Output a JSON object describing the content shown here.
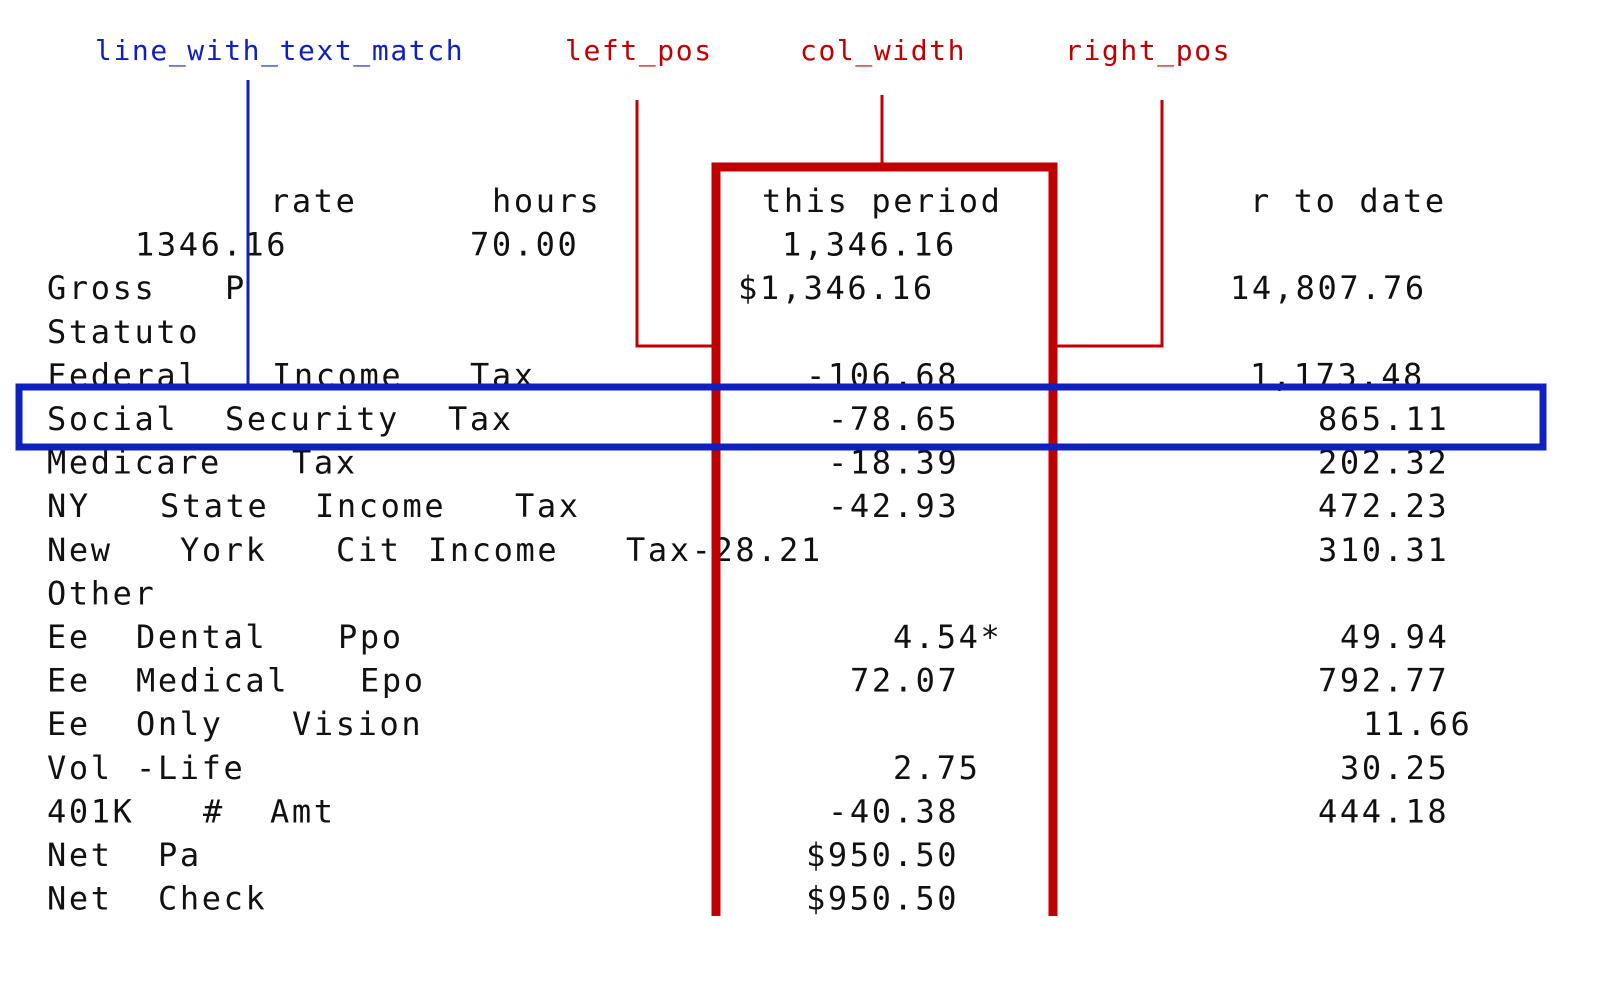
{
  "annotations": {
    "line_with_text_match": "line_with_text_match",
    "left_pos": "left_pos",
    "col_width": "col_width",
    "right_pos": "right_pos"
  },
  "rows": [
    [
      "rate",
      "hours",
      "this period",
      "r to date"
    ],
    [
      "1346.16",
      "70.00",
      "1,346.16"
    ],
    [
      "Gross",
      "P",
      "$1,346.16",
      "14,807.76"
    ],
    [
      "Statuto"
    ],
    [
      "Federal",
      "Income",
      "Tax",
      "-106.68",
      "1,173.48"
    ],
    [
      "Social",
      "Security",
      "Tax",
      "-78.65",
      "865.11"
    ],
    [
      "Medicare",
      "Tax",
      "-18.39",
      "202.32"
    ],
    [
      "NY",
      "State",
      "Income",
      "Tax",
      "-42.93",
      "472.23"
    ],
    [
      "New",
      "York",
      "Cit",
      "Income",
      "Tax-28.21",
      "310.31"
    ],
    [
      "Other"
    ],
    [
      "Ee",
      "Dental",
      "Ppo",
      "4.54*",
      "49.94"
    ],
    [
      "Ee",
      "Medical",
      "Epo",
      "72.07",
      "792.77"
    ],
    [
      "Ee",
      "Only",
      "Vision",
      "11.66"
    ],
    [
      "Vol",
      "-Life",
      "2.75",
      "30.25"
    ],
    [
      "401K",
      "#",
      "Amt",
      "-40.38",
      "444.18"
    ],
    [
      "Net",
      "Pa",
      "$950.50"
    ],
    [
      "Net",
      "Check",
      "$950.50"
    ]
  ]
}
